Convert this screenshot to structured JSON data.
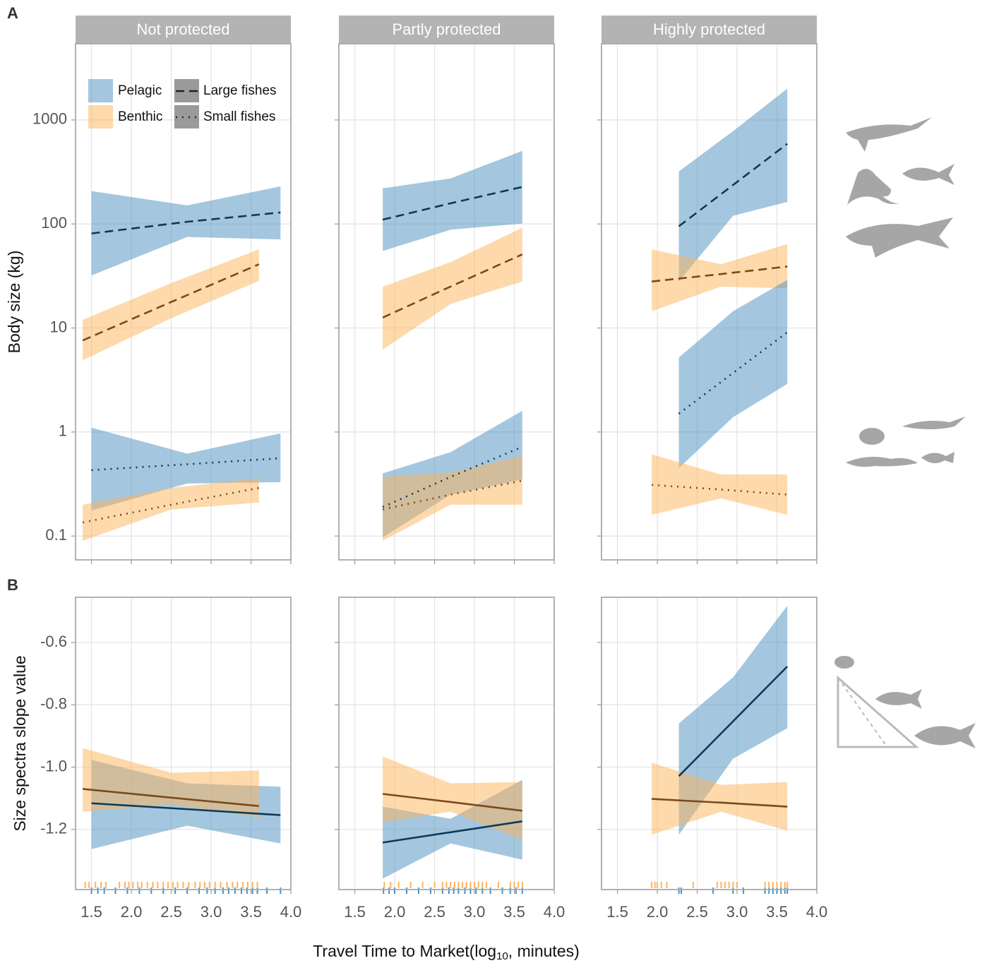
{
  "chart_data": [
    {
      "type": "line",
      "panel_label": "A",
      "ylabel": "Body size (kg)",
      "log_y": true,
      "grid": true,
      "ylim": [
        0.059,
        5400
      ],
      "yticks": [
        0.1,
        1,
        10,
        100,
        1000
      ],
      "xlim": [
        1.3,
        4.0
      ],
      "legend": [
        {
          "name": "Pelagic",
          "fill": "#4a8fc0"
        },
        {
          "name": "Benthic",
          "fill": "#fdb35a"
        },
        {
          "name": "Large fishes",
          "dash": "dashed"
        },
        {
          "name": "Small fishes",
          "dash": "dotted"
        }
      ],
      "facets": [
        {
          "title": "Not protected",
          "series": [
            {
              "fill": "#4a8fc0",
              "line_color": "#0d3a55",
              "dash": "dashed",
              "x": [
                1.5,
                2.7,
                3.87
              ],
              "values": [
                81,
                105,
                129
              ],
              "lower": [
                32,
                75,
                71
              ],
              "upper": [
                207,
                151,
                230
              ]
            },
            {
              "fill": "#fdb35a",
              "line_color": "#7a4a1c",
              "dash": "dashed",
              "x": [
                1.39,
                2.5,
                3.6
              ],
              "values": [
                7.6,
                17.8,
                41
              ],
              "lower": [
                4.9,
                12.4,
                28.4
              ],
              "upper": [
                12,
                27,
                57
              ]
            },
            {
              "fill": "#4a8fc0",
              "line_color": "#0d3a55",
              "dash": "dotted",
              "x": [
                1.5,
                2.7,
                3.87
              ],
              "values": [
                0.43,
                0.49,
                0.56
              ],
              "lower": [
                0.176,
                0.32,
                0.33
              ],
              "upper": [
                1.1,
                0.62,
                0.97
              ]
            },
            {
              "fill": "#fdb35a",
              "line_color": "#7a4a1c",
              "dash": "dotted",
              "x": [
                1.39,
                2.5,
                3.6
              ],
              "values": [
                0.135,
                0.2,
                0.29
              ],
              "lower": [
                0.09,
                0.18,
                0.21
              ],
              "upper": [
                0.2,
                0.29,
                0.36
              ]
            }
          ]
        },
        {
          "title": "Partly protected",
          "series": [
            {
              "fill": "#4a8fc0",
              "line_color": "#0d3a55",
              "dash": "dashed",
              "x": [
                1.85,
                2.7,
                3.6
              ],
              "values": [
                110,
                158,
                227
              ],
              "lower": [
                55,
                88,
                101
              ],
              "upper": [
                220,
                274,
                504
              ]
            },
            {
              "fill": "#fdb35a",
              "line_color": "#7a4a1c",
              "dash": "dashed",
              "x": [
                1.85,
                2.7,
                3.6
              ],
              "values": [
                12.6,
                25,
                51
              ],
              "lower": [
                6.2,
                17,
                28
              ],
              "upper": [
                25,
                43,
                92
              ]
            },
            {
              "fill": "#4a8fc0",
              "line_color": "#0d3a55",
              "dash": "dotted",
              "x": [
                1.85,
                2.7,
                3.6
              ],
              "values": [
                0.19,
                0.37,
                0.72
              ],
              "lower": [
                0.097,
                0.25,
                0.35
              ],
              "upper": [
                0.4,
                0.64,
                1.6
              ]
            },
            {
              "fill": "#fdb35a",
              "line_color": "#7a4a1c",
              "dash": "dotted",
              "x": [
                1.85,
                2.7,
                3.6
              ],
              "values": [
                0.18,
                0.25,
                0.34
              ],
              "lower": [
                0.09,
                0.2,
                0.2
              ],
              "upper": [
                0.37,
                0.41,
                0.59
              ]
            }
          ]
        },
        {
          "title": "Highly protected",
          "series": [
            {
              "fill": "#4a8fc0",
              "line_color": "#0d3a55",
              "dash": "dashed",
              "x": [
                2.27,
                2.95,
                3.63
              ],
              "values": [
                95,
                237,
                590
              ],
              "lower": [
                28,
                120,
                163
              ],
              "upper": [
                320,
                780,
                2000
              ]
            },
            {
              "fill": "#fdb35a",
              "line_color": "#7a4a1c",
              "dash": "dashed",
              "x": [
                1.93,
                2.8,
                3.63
              ],
              "values": [
                28,
                33,
                39
              ],
              "lower": [
                14.5,
                25,
                24
              ],
              "upper": [
                57,
                41,
                64
              ]
            },
            {
              "fill": "#4a8fc0",
              "line_color": "#0d3a55",
              "dash": "dotted",
              "x": [
                2.27,
                2.95,
                3.63
              ],
              "values": [
                1.5,
                3.7,
                9.1
              ],
              "lower": [
                0.45,
                1.39,
                2.9
              ],
              "upper": [
                5.2,
                14.5,
                29
              ]
            },
            {
              "fill": "#fdb35a",
              "line_color": "#7a4a1c",
              "dash": "dotted",
              "x": [
                1.93,
                2.8,
                3.63
              ],
              "values": [
                0.31,
                0.28,
                0.25
              ],
              "lower": [
                0.16,
                0.23,
                0.16
              ],
              "upper": [
                0.61,
                0.39,
                0.39
              ]
            }
          ]
        }
      ]
    },
    {
      "type": "line",
      "panel_label": "B",
      "ylabel": "Size spectra slope value",
      "grid": true,
      "ylim": [
        -1.393,
        -0.455
      ],
      "yticks": [
        -0.6,
        -0.8,
        {
          "value": -1,
          "label": "-1.0"
        },
        -1.2
      ],
      "xlim": [
        1.3,
        4.0
      ],
      "xticks": [
        1.5,
        {
          "value": 2,
          "label": "2.0"
        },
        2.5,
        {
          "value": 3,
          "label": "3.0"
        },
        3.5,
        {
          "value": 4,
          "label": "4.0"
        }
      ],
      "xlabel": {
        "text": "Travel Time to Market(log",
        "subscript": "10",
        "suffix": ",  minutes)"
      },
      "facets": [
        {
          "series": [
            {
              "fill": "#4a8fc0",
              "line_color": "#0d3a55",
              "dash": "solid",
              "x": [
                1.5,
                2.7,
                3.87
              ],
              "values": [
                -1.116,
                -1.135,
                -1.154
              ],
              "lower": [
                -1.263,
                -1.188,
                -1.245
              ],
              "upper": [
                -0.977,
                -1.052,
                -1.063
              ],
              "rug": [
                1.5,
                1.58,
                1.66,
                1.8,
                1.95,
                2.1,
                2.25,
                2.4,
                2.55,
                2.7,
                2.85,
                2.95,
                3.05,
                3.15,
                3.22,
                3.3,
                3.38,
                3.45,
                3.52,
                3.58,
                3.7,
                3.87
              ]
            },
            {
              "fill": "#fdb35a",
              "line_color": "#7a4a1c",
              "dash": "solid",
              "x": [
                1.39,
                2.5,
                3.6
              ],
              "values": [
                -1.07,
                -1.098,
                -1.125
              ],
              "lower": [
                -1.143,
                -1.12,
                -1.161
              ],
              "upper": [
                -0.939,
                -1.018,
                -1.011
              ],
              "rug": [
                1.42,
                1.47,
                1.55,
                1.62,
                1.68,
                1.85,
                1.92,
                1.97,
                2.02,
                2.08,
                2.13,
                2.2,
                2.27,
                2.33,
                2.4,
                2.46,
                2.52,
                2.58,
                2.65,
                2.72,
                2.8,
                2.86,
                2.92,
                2.98,
                3.05,
                3.12,
                3.2,
                3.27,
                3.33,
                3.4,
                3.46,
                3.52,
                3.58
              ]
            }
          ]
        },
        {
          "series": [
            {
              "fill": "#4a8fc0",
              "line_color": "#0d3a55",
              "dash": "solid",
              "x": [
                1.85,
                2.7,
                3.6
              ],
              "values": [
                -1.242,
                -1.209,
                -1.174
              ],
              "lower": [
                -1.358,
                -1.245,
                -1.297
              ],
              "upper": [
                -1.127,
                -1.166,
                -1.041
              ],
              "rug": [
                1.86,
                1.93,
                2.0,
                2.15,
                2.3,
                2.45,
                2.6,
                2.68,
                2.74,
                2.8,
                2.88,
                2.95,
                3.02,
                3.1,
                3.2,
                3.35,
                3.45,
                3.52,
                3.6
              ]
            },
            {
              "fill": "#fdb35a",
              "line_color": "#7a4a1c",
              "dash": "solid",
              "x": [
                1.85,
                2.7,
                3.6
              ],
              "values": [
                -1.086,
                -1.112,
                -1.14
              ],
              "lower": [
                -1.177,
                -1.143,
                -1.233
              ],
              "upper": [
                -0.966,
                -1.052,
                -1.048
              ],
              "rug": [
                1.87,
                1.95,
                2.05,
                2.2,
                2.35,
                2.5,
                2.6,
                2.65,
                2.7,
                2.75,
                2.8,
                2.85,
                2.9,
                2.95,
                3.0,
                3.05,
                3.1,
                3.15,
                3.3,
                3.45,
                3.5,
                3.55,
                3.6
              ]
            }
          ]
        },
        {
          "series": [
            {
              "fill": "#4a8fc0",
              "line_color": "#0d3a55",
              "dash": "solid",
              "x": [
                2.27,
                2.95,
                3.63
              ],
              "values": [
                -1.029,
                -0.853,
                -0.677
              ],
              "lower": [
                -1.217,
                -0.973,
                -0.875
              ],
              "upper": [
                -0.86,
                -0.712,
                -0.482
              ],
              "rug": [
                2.27,
                2.3,
                2.7,
                2.95,
                3.08,
                3.35,
                3.4,
                3.45,
                3.5,
                3.55,
                3.6,
                3.63
              ]
            },
            {
              "fill": "#fdb35a",
              "line_color": "#7a4a1c",
              "dash": "solid",
              "x": [
                1.93,
                2.8,
                3.63
              ],
              "values": [
                -1.102,
                -1.114,
                -1.127
              ],
              "lower": [
                -1.217,
                -1.143,
                -1.204
              ],
              "upper": [
                -0.986,
                -1.057,
                -1.048
              ],
              "rug": [
                1.93,
                1.97,
                2.0,
                2.05,
                2.12,
                2.45,
                2.75,
                2.8,
                2.85,
                2.9,
                2.95,
                3.0,
                3.35,
                3.4,
                3.45,
                3.5,
                3.55,
                3.6,
                3.63
              ]
            }
          ]
        }
      ]
    }
  ]
}
